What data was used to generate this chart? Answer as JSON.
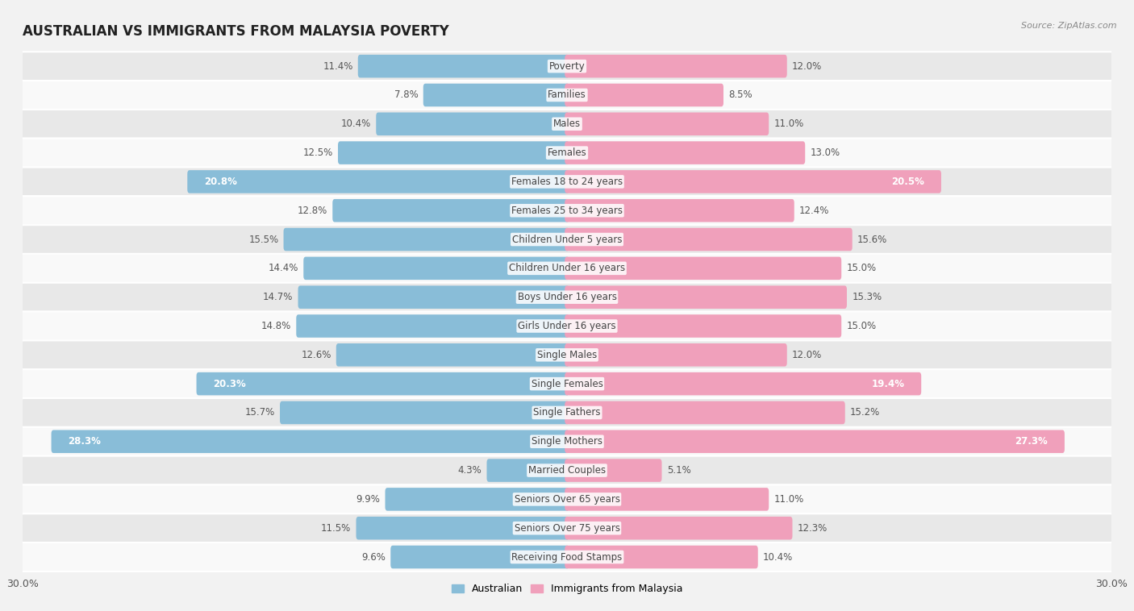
{
  "title": "AUSTRALIAN VS IMMIGRANTS FROM MALAYSIA POVERTY",
  "source": "Source: ZipAtlas.com",
  "categories": [
    "Poverty",
    "Families",
    "Males",
    "Females",
    "Females 18 to 24 years",
    "Females 25 to 34 years",
    "Children Under 5 years",
    "Children Under 16 years",
    "Boys Under 16 years",
    "Girls Under 16 years",
    "Single Males",
    "Single Females",
    "Single Fathers",
    "Single Mothers",
    "Married Couples",
    "Seniors Over 65 years",
    "Seniors Over 75 years",
    "Receiving Food Stamps"
  ],
  "australian": [
    11.4,
    7.8,
    10.4,
    12.5,
    20.8,
    12.8,
    15.5,
    14.4,
    14.7,
    14.8,
    12.6,
    20.3,
    15.7,
    28.3,
    4.3,
    9.9,
    11.5,
    9.6
  ],
  "immigrants": [
    12.0,
    8.5,
    11.0,
    13.0,
    20.5,
    12.4,
    15.6,
    15.0,
    15.3,
    15.0,
    12.0,
    19.4,
    15.2,
    27.3,
    5.1,
    11.0,
    12.3,
    10.4
  ],
  "australian_color": "#89bdd8",
  "immigrants_color": "#f0a0bb",
  "background_color": "#f2f2f2",
  "row_color_light": "#e8e8e8",
  "row_color_white": "#f9f9f9",
  "max_val": 30.0,
  "label_fontsize": 8.5,
  "title_fontsize": 12,
  "legend_labels": [
    "Australian",
    "Immigrants from Malaysia"
  ],
  "inside_label_threshold": 18.0
}
